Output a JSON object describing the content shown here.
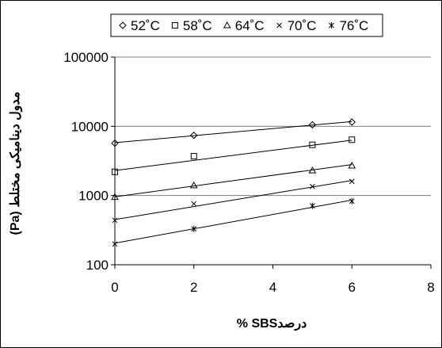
{
  "chart_data": {
    "type": "scatter",
    "xlabel": "درصدSBS %",
    "ylabel": "مدول دینامیکی مختلط (Pa)",
    "xlim": [
      0,
      8
    ],
    "ylim": [
      100,
      100000
    ],
    "yscale": "log",
    "xticks": [
      "0",
      "2",
      "4",
      "6",
      "8"
    ],
    "yticks": [
      "100",
      "1000",
      "10000",
      "100000"
    ],
    "grid": "horizontal",
    "legend_position": "top",
    "trendlines": true,
    "series": [
      {
        "name": "52˚C",
        "marker": "diamond",
        "x": [
          0,
          2,
          5,
          6
        ],
        "y": [
          5700,
          7400,
          10500,
          11500
        ],
        "fit": [
          5800,
          11700
        ]
      },
      {
        "name": "58˚C",
        "marker": "square",
        "x": [
          0,
          2,
          5,
          6
        ],
        "y": [
          2200,
          3700,
          5400,
          6400
        ],
        "fit": [
          2300,
          6300
        ]
      },
      {
        "name": "64˚C",
        "marker": "triangle",
        "x": [
          0,
          2,
          5,
          6
        ],
        "y": [
          950,
          1400,
          2300,
          2700
        ],
        "fit": [
          960,
          2800
        ]
      },
      {
        "name": "70˚C",
        "marker": "x",
        "x": [
          0,
          2,
          5,
          6
        ],
        "y": [
          440,
          760,
          1350,
          1600
        ],
        "fit": [
          450,
          1650
        ]
      },
      {
        "name": "76˚C",
        "marker": "star",
        "x": [
          0,
          2,
          5,
          6
        ],
        "y": [
          200,
          330,
          710,
          830
        ],
        "fit": [
          205,
          860
        ]
      }
    ]
  }
}
